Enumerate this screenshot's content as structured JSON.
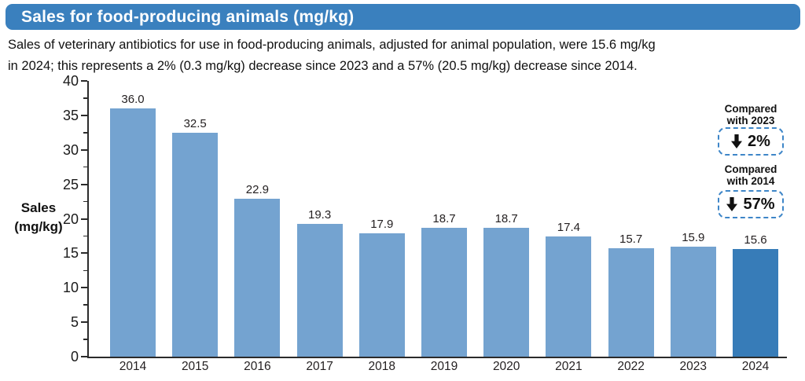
{
  "title": "Sales for food-producing animals (mg/kg)",
  "description": {
    "line1": "Sales of veterinary antibiotics for use in food-producing animals, adjusted for animal population, were 15.6 mg/kg",
    "line2": "in 2024; this represents a 2% (0.3 mg/kg) decrease since 2023 and a 57% (20.5 mg/kg) decrease since 2014."
  },
  "chart_data": {
    "type": "bar",
    "title": "Sales for food-producing animals (mg/kg)",
    "categories": [
      "2014",
      "2015",
      "2016",
      "2017",
      "2018",
      "2019",
      "2020",
      "2021",
      "2022",
      "2023",
      "2024"
    ],
    "values": [
      36.0,
      32.5,
      22.9,
      19.3,
      17.9,
      18.7,
      18.7,
      17.4,
      15.7,
      15.9,
      15.6
    ],
    "value_labels": [
      "36.0",
      "32.5",
      "22.9",
      "19.3",
      "17.9",
      "18.7",
      "18.7",
      "17.4",
      "15.7",
      "15.9",
      "15.6"
    ],
    "ylabel_line1": "Sales",
    "ylabel_line2": "(mg/kg)",
    "ylim": [
      0,
      40
    ],
    "yticks": [
      0,
      5,
      10,
      15,
      20,
      25,
      30,
      35,
      40
    ],
    "minor_tick_step": 2.5,
    "grid": false,
    "legend": "none",
    "bar_color": "#74a3d0",
    "highlight_color": "#377cb8",
    "highlight_index": 10
  },
  "annotations": [
    {
      "label_line1": "Compared",
      "label_line2": "with 2023",
      "value": "2%",
      "icon": "down-arrow-icon"
    },
    {
      "label_line1": "Compared",
      "label_line2": "with 2014",
      "value": "57%",
      "icon": "down-arrow-icon"
    }
  ],
  "colors": {
    "title_bar": "#3a80be",
    "bar": "#74a3d0",
    "highlight_bar": "#377cb8",
    "dashed_border": "#3e86c8",
    "axis": "#2b2b2b"
  }
}
